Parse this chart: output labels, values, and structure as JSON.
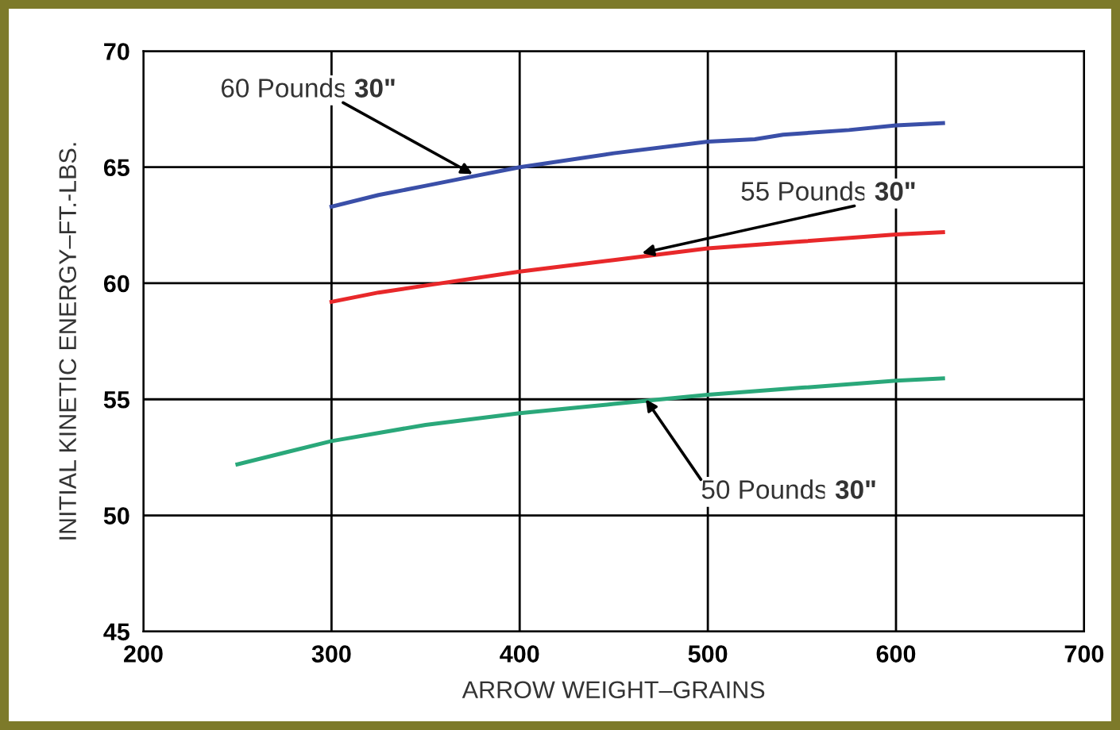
{
  "chart_data": {
    "type": "line",
    "xlabel": "ARROW WEIGHT–GRAINS",
    "ylabel": "INITIAL KINETIC ENERGY–FT.-LBS.",
    "xlim": [
      200,
      700
    ],
    "xticks": [
      200,
      300,
      400,
      500,
      600,
      700
    ],
    "ylim": [
      45,
      70
    ],
    "yticks": [
      45,
      50,
      55,
      60,
      65,
      70
    ],
    "grid": true,
    "legend": false,
    "marker": "none",
    "line_style": "solid",
    "series": [
      {
        "color": "#3a4fa8",
        "x": [
          300,
          325,
          350,
          375,
          400,
          450,
          500,
          525,
          540,
          575,
          600,
          625
        ],
        "values": [
          63.3,
          63.8,
          64.2,
          64.6,
          65.0,
          65.6,
          66.1,
          66.2,
          66.4,
          66.6,
          66.8,
          66.9
        ]
      },
      {
        "color": "#e8282a",
        "x": [
          300,
          325,
          350,
          400,
          450,
          500,
          550,
          600,
          625
        ],
        "values": [
          59.2,
          59.6,
          59.9,
          60.5,
          61.0,
          61.5,
          61.8,
          62.1,
          62.2
        ]
      },
      {
        "color": "#2aa87a",
        "x": [
          250,
          275,
          300,
          350,
          400,
          450,
          500,
          550,
          600,
          625
        ],
        "values": [
          52.2,
          52.7,
          53.2,
          53.9,
          54.4,
          54.8,
          55.2,
          55.5,
          55.8,
          55.9
        ]
      }
    ],
    "annotations": [
      {
        "text": "60 Pounds 30\"",
        "x": 375,
        "y": 64.7
      },
      {
        "text": "55 Pounds 30\"",
        "x": 465,
        "y": 61.3
      },
      {
        "text": "50 Pounds 30\"",
        "x": 467,
        "y": 55.0
      }
    ]
  }
}
